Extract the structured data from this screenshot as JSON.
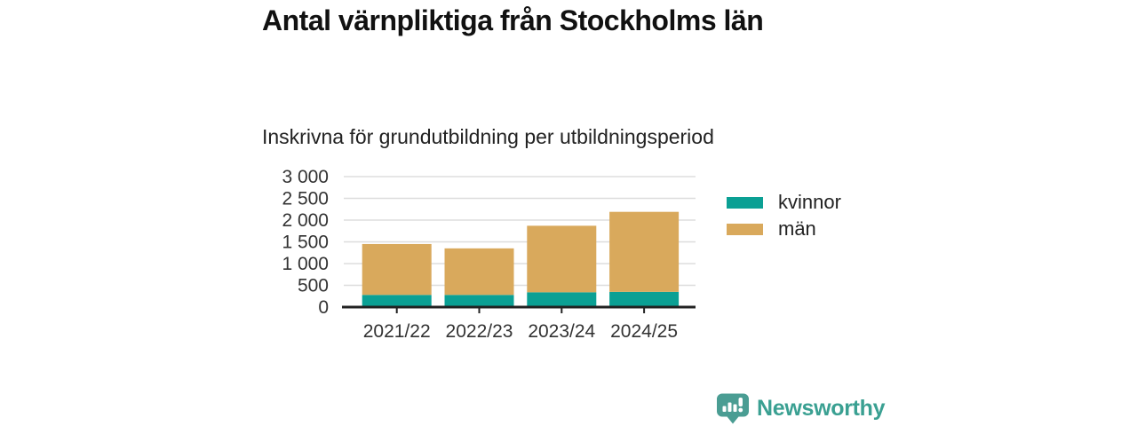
{
  "header": {
    "title": "Antal värnpliktiga från Stockholms län",
    "subtitle": "Inskrivna för grundutbildning per utbildningsperiod"
  },
  "chart_data": {
    "type": "bar",
    "stacked": true,
    "title": "Antal värnpliktiga från Stockholms län",
    "subtitle": "Inskrivna för grundutbildning per utbildningsperiod",
    "categories": [
      "2021/22",
      "2022/23",
      "2023/24",
      "2024/25"
    ],
    "series": [
      {
        "name": "kvinnor",
        "color": "#0ba094",
        "values": [
          280,
          280,
          340,
          350
        ]
      },
      {
        "name": "män",
        "color": "#d9a95c",
        "values": [
          1170,
          1070,
          1530,
          1840
        ]
      }
    ],
    "ylim": [
      0,
      3000
    ],
    "ytick_step": 500,
    "ytick_labels": [
      "0",
      "500",
      "1 000",
      "1 500",
      "2 000",
      "2 500",
      "3 000"
    ],
    "grid": true,
    "legend_position": "right",
    "colors": {
      "gridline": "#dddddd",
      "axis": "#222222",
      "tick_label": "#333333"
    }
  },
  "footer": {
    "brand": "Newsworthy",
    "brand_color": "#3aa092",
    "logo_icon": "newsworthy-speech-bubble-chart-icon",
    "logo_icon_color": "#4a9d93"
  }
}
